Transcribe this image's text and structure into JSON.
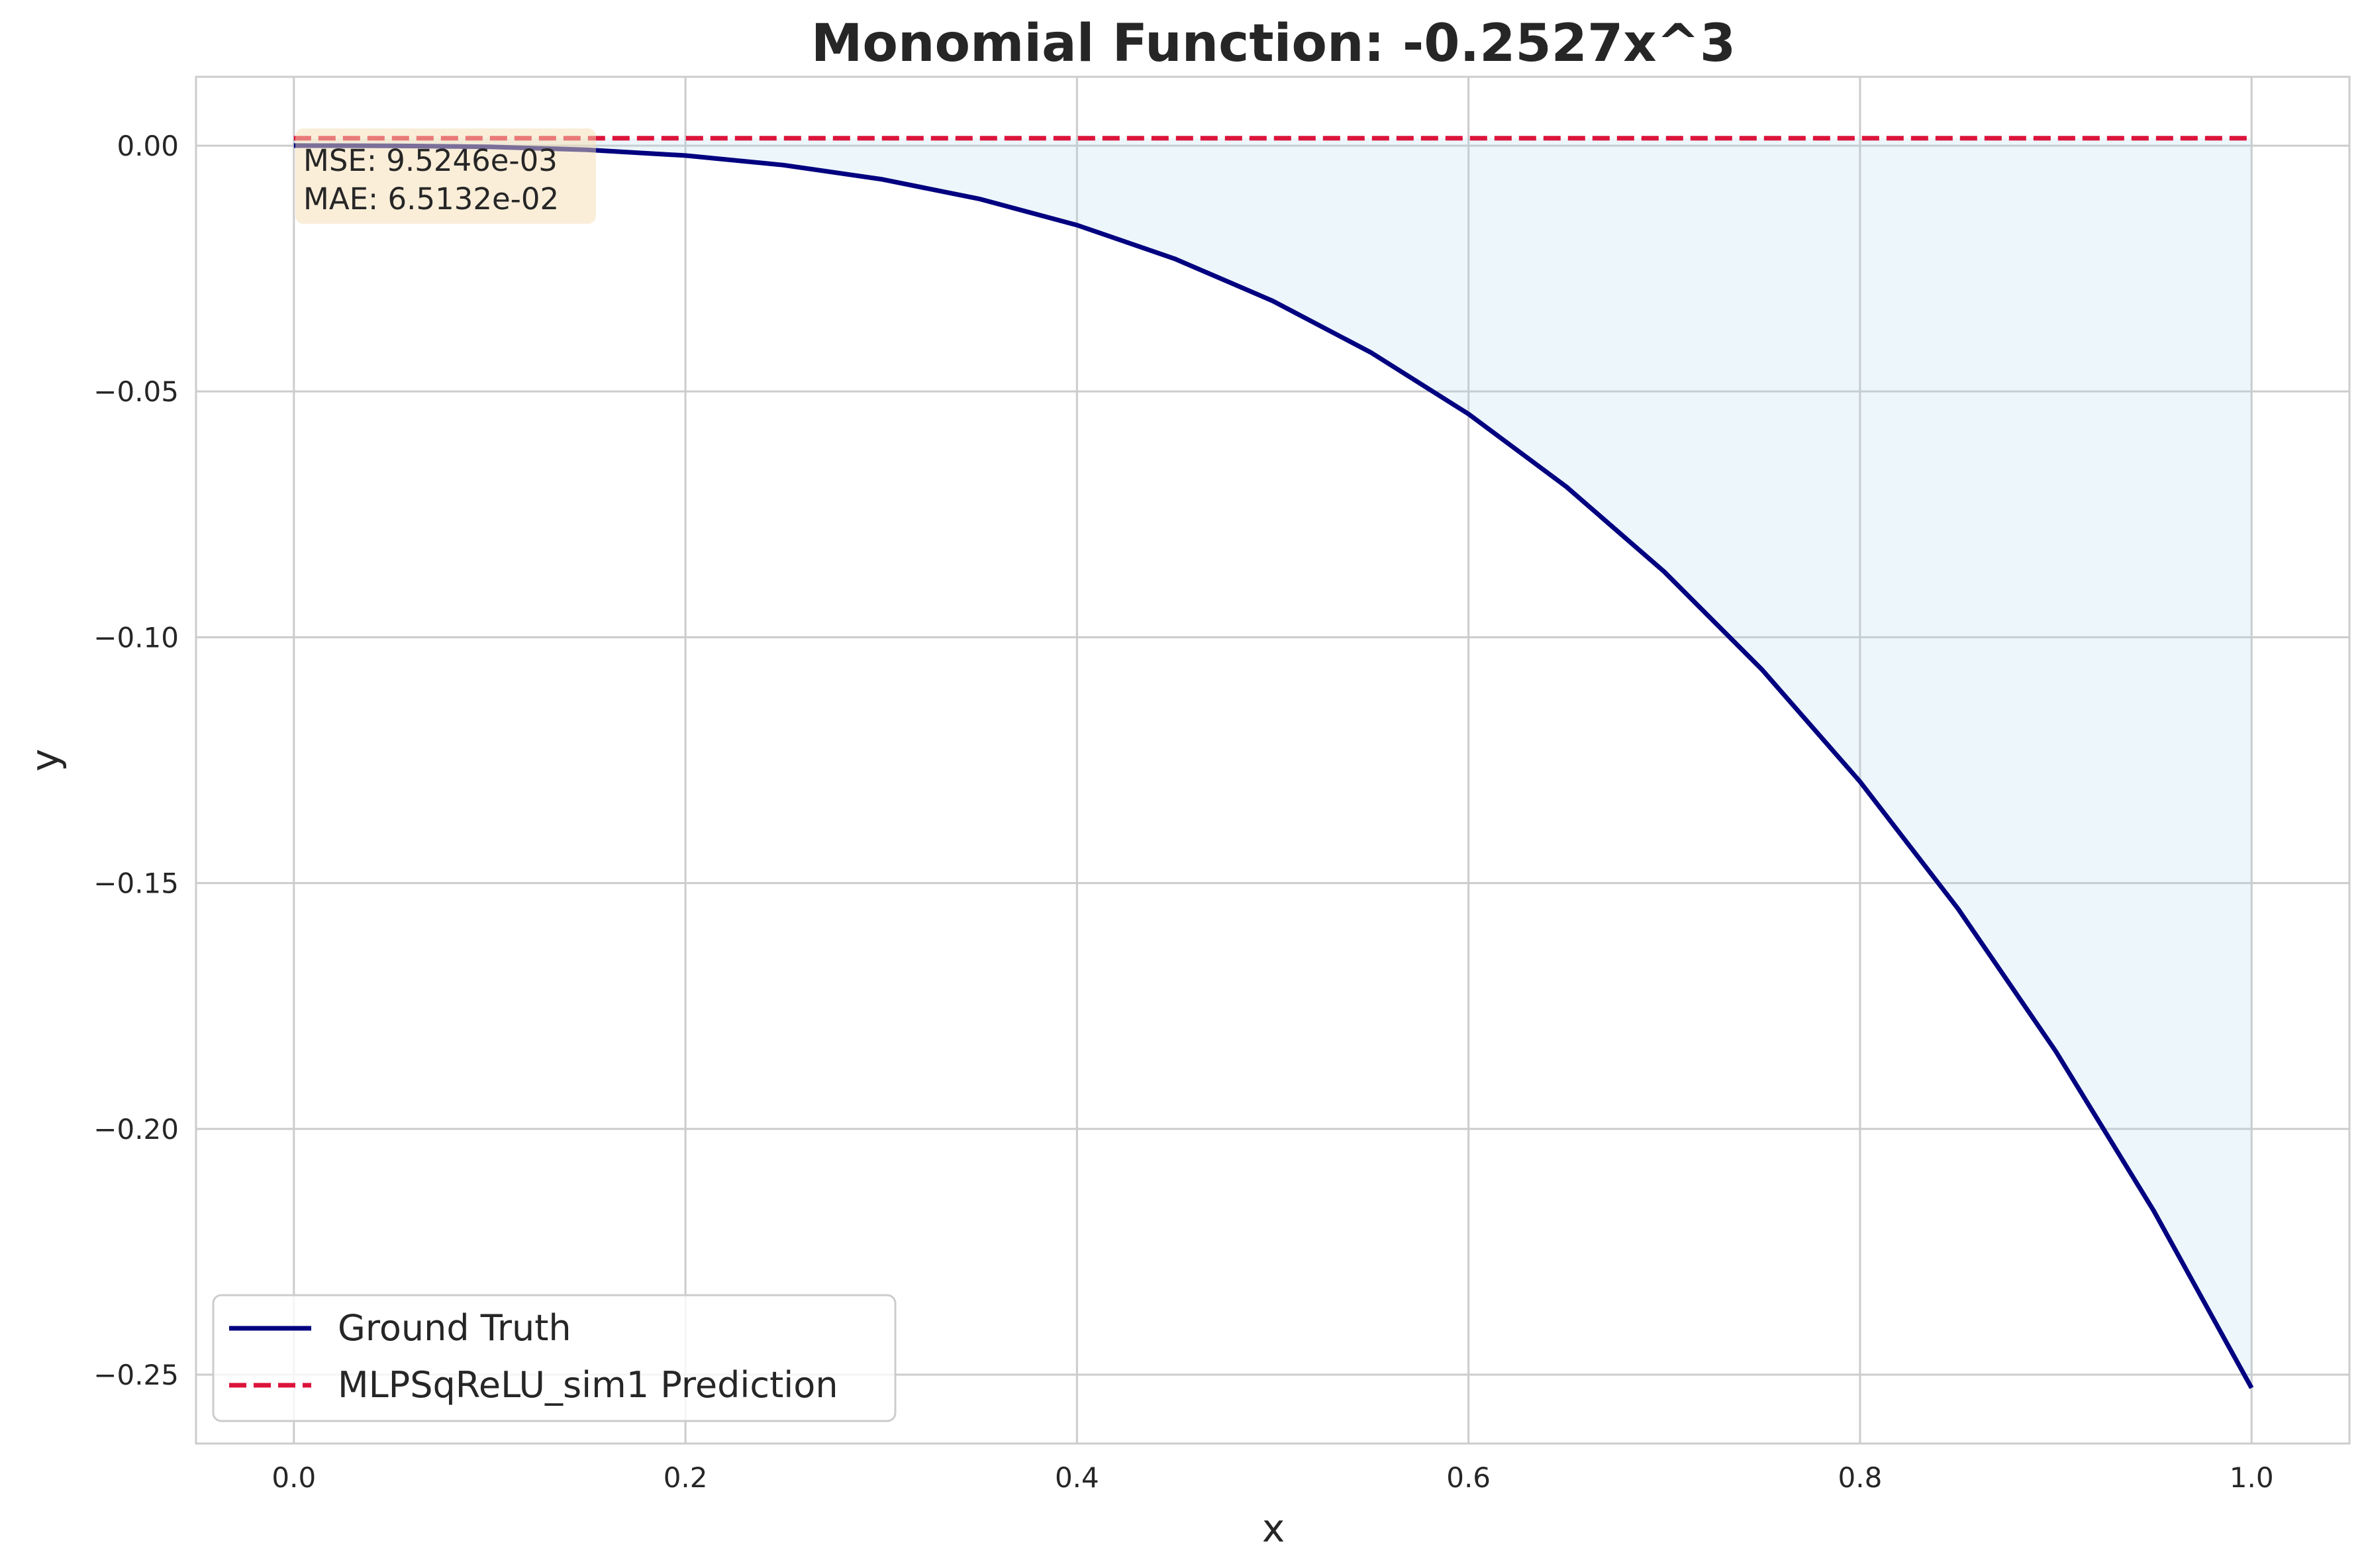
{
  "chart_data": {
    "type": "line",
    "title": "Monomial Function: -0.2527x^3",
    "xlabel": "x",
    "ylabel": "y",
    "xlim": [
      -0.05,
      1.05
    ],
    "ylim": [
      -0.264,
      0.014
    ],
    "xticks": [
      0.0,
      0.2,
      0.4,
      0.6,
      0.8,
      1.0
    ],
    "xtick_labels": [
      "0.0",
      "0.2",
      "0.4",
      "0.6",
      "0.8",
      "1.0"
    ],
    "yticks": [
      0.0,
      -0.05,
      -0.1,
      -0.15,
      -0.2,
      -0.25
    ],
    "ytick_labels": [
      "0.00",
      "−0.05",
      "−0.10",
      "−0.15",
      "−0.20",
      "−0.25"
    ],
    "grid": true,
    "legend_position": "lower-left",
    "ground_truth_coefficient": -0.2527,
    "series": [
      {
        "name": "Ground Truth",
        "color": "#000080",
        "style": "solid",
        "x": [
          0.0,
          0.05,
          0.1,
          0.15,
          0.2,
          0.25,
          0.3,
          0.35,
          0.4,
          0.45,
          0.5,
          0.55,
          0.6,
          0.65,
          0.7,
          0.75,
          0.8,
          0.85,
          0.9,
          0.95,
          1.0
        ],
        "y": [
          0.0,
          -3.16e-05,
          -0.000253,
          -0.000853,
          -0.00202,
          -0.00395,
          -0.00682,
          -0.01083,
          -0.01617,
          -0.02303,
          -0.03159,
          -0.04204,
          -0.05458,
          -0.0694,
          -0.08668,
          -0.10661,
          -0.12938,
          -0.15519,
          -0.18422,
          -0.21666,
          -0.2527
        ]
      },
      {
        "name": "MLPSqReLU_sim1 Prediction",
        "color": "#dc143c",
        "style": "dashed",
        "x": [
          0.0,
          1.0
        ],
        "y": [
          0.0015,
          0.0015
        ]
      }
    ],
    "fill_between": {
      "color": "#add8e6",
      "opacity": 0.22
    },
    "metrics": {
      "mse": "MSE: 9.5246e-03",
      "mae": "MAE: 6.5132e-02",
      "box_color": "#f5deb3"
    }
  }
}
